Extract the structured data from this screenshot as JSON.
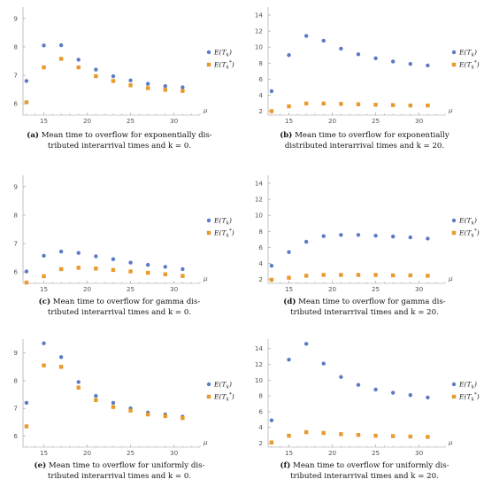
{
  "colors": {
    "series1": "#5b7bc4",
    "series2": "#e89a2c",
    "axis": "#999999",
    "tick_text": "#555555"
  },
  "panels": [
    {
      "tag": "(a)",
      "caption_line1": "Mean time to overflow for exponentially dis-",
      "caption_line2": "tributed interarrival times and k = 0."
    },
    {
      "tag": "(b)",
      "caption_line1": "Mean time to overflow for exponentially",
      "caption_line2": "distributed interarrival times and k = 20."
    },
    {
      "tag": "(c)",
      "caption_line1": "Mean time to overflow for gamma dis-",
      "caption_line2": "tributed interarrival times and k = 0."
    },
    {
      "tag": "(d)",
      "caption_line1": "Mean time to overflow for gamma dis-",
      "caption_line2": "tributed interarrival times and k = 20."
    },
    {
      "tag": "(e)",
      "caption_line1": "Mean time to overflow for uniformly dis-",
      "caption_line2": "tributed interarrival times and k = 0."
    },
    {
      "tag": "(f)",
      "caption_line1": "Mean time to overflow for uniformly dis-",
      "caption_line2": "tributed interarrival times and k = 20."
    }
  ],
  "chart_data": [
    {
      "type": "scatter",
      "x_axis_label": "μ",
      "x": [
        13,
        15,
        17,
        19,
        21,
        23,
        25,
        27,
        29,
        31
      ],
      "xticks": [
        15,
        20,
        25,
        30
      ],
      "yticks": [
        6,
        7,
        8,
        9
      ],
      "xlim": [
        12.6,
        33
      ],
      "ylim": [
        5.6,
        9.4
      ],
      "series": [
        {
          "name": "E(T_k)",
          "values": [
            6.8,
            8.05,
            8.06,
            7.55,
            7.2,
            6.97,
            6.82,
            6.7,
            6.62,
            6.58
          ]
        },
        {
          "name": "E(T_k^*)",
          "values": [
            6.05,
            7.28,
            7.58,
            7.28,
            6.97,
            6.8,
            6.65,
            6.55,
            6.49,
            6.45
          ]
        }
      ]
    },
    {
      "type": "scatter",
      "x_axis_label": "μ",
      "x": [
        13,
        15,
        17,
        19,
        21,
        23,
        25,
        27,
        29,
        31
      ],
      "xticks": [
        15,
        20,
        25,
        30
      ],
      "yticks": [
        2,
        4,
        6,
        8,
        10,
        12,
        14
      ],
      "xlim": [
        12.6,
        33
      ],
      "ylim": [
        1.5,
        15
      ],
      "series": [
        {
          "name": "E(T_k)",
          "values": [
            4.5,
            9.0,
            11.4,
            10.8,
            9.8,
            9.1,
            8.6,
            8.2,
            7.9,
            7.7
          ]
        },
        {
          "name": "E(T_k^*)",
          "values": [
            2.0,
            2.6,
            2.95,
            2.95,
            2.9,
            2.85,
            2.8,
            2.75,
            2.7,
            2.7
          ]
        }
      ]
    },
    {
      "type": "scatter",
      "x_axis_label": "μ",
      "x": [
        13,
        15,
        17,
        19,
        21,
        23,
        25,
        27,
        29,
        31
      ],
      "xticks": [
        15,
        20,
        25,
        30
      ],
      "yticks": [
        6,
        7,
        8,
        9
      ],
      "xlim": [
        12.6,
        33
      ],
      "ylim": [
        5.6,
        9.4
      ],
      "series": [
        {
          "name": "E(T_k)",
          "values": [
            6.02,
            6.57,
            6.72,
            6.67,
            6.55,
            6.45,
            6.33,
            6.25,
            6.18,
            6.1
          ]
        },
        {
          "name": "E(T_k^*)",
          "values": [
            5.63,
            5.85,
            6.1,
            6.15,
            6.12,
            6.07,
            6.02,
            5.97,
            5.92,
            5.86
          ]
        }
      ]
    },
    {
      "type": "scatter",
      "x_axis_label": "μ",
      "x": [
        13,
        15,
        17,
        19,
        21,
        23,
        25,
        27,
        29,
        31
      ],
      "xticks": [
        15,
        20,
        25,
        30
      ],
      "yticks": [
        2,
        4,
        6,
        8,
        10,
        12,
        14
      ],
      "xlim": [
        12.6,
        33
      ],
      "ylim": [
        1.5,
        15
      ],
      "series": [
        {
          "name": "E(T_k)",
          "values": [
            3.7,
            5.4,
            6.7,
            7.4,
            7.55,
            7.55,
            7.45,
            7.35,
            7.25,
            7.1
          ]
        },
        {
          "name": "E(T_k^*)",
          "values": [
            1.95,
            2.2,
            2.45,
            2.55,
            2.55,
            2.55,
            2.55,
            2.5,
            2.5,
            2.45
          ]
        }
      ]
    },
    {
      "type": "scatter",
      "x_axis_label": "μ",
      "x": [
        13,
        15,
        17,
        19,
        21,
        23,
        25,
        27,
        29,
        31
      ],
      "xticks": [
        15,
        20,
        25,
        30
      ],
      "yticks": [
        6,
        7,
        8,
        9
      ],
      "xlim": [
        12.6,
        33
      ],
      "ylim": [
        5.6,
        9.5
      ],
      "series": [
        {
          "name": "E(T_k)",
          "values": [
            7.2,
            9.35,
            8.85,
            7.95,
            7.45,
            7.2,
            7.0,
            6.85,
            6.78,
            6.7
          ]
        },
        {
          "name": "E(T_k^*)",
          "values": [
            6.35,
            8.55,
            8.5,
            7.75,
            7.3,
            7.05,
            6.92,
            6.78,
            6.72,
            6.65
          ]
        }
      ]
    },
    {
      "type": "scatter",
      "x_axis_label": "μ",
      "x": [
        13,
        15,
        17,
        19,
        21,
        23,
        25,
        27,
        29,
        31
      ],
      "xticks": [
        15,
        20,
        25,
        30
      ],
      "yticks": [
        2,
        4,
        6,
        8,
        10,
        12,
        14
      ],
      "xlim": [
        12.6,
        33
      ],
      "ylim": [
        1.5,
        15.2
      ],
      "series": [
        {
          "name": "E(T_k)",
          "values": [
            4.9,
            12.6,
            14.6,
            12.1,
            10.4,
            9.4,
            8.8,
            8.4,
            8.1,
            7.8
          ]
        },
        {
          "name": "E(T_k^*)",
          "values": [
            2.1,
            2.95,
            3.4,
            3.3,
            3.15,
            3.05,
            2.95,
            2.9,
            2.85,
            2.8
          ]
        }
      ]
    }
  ]
}
